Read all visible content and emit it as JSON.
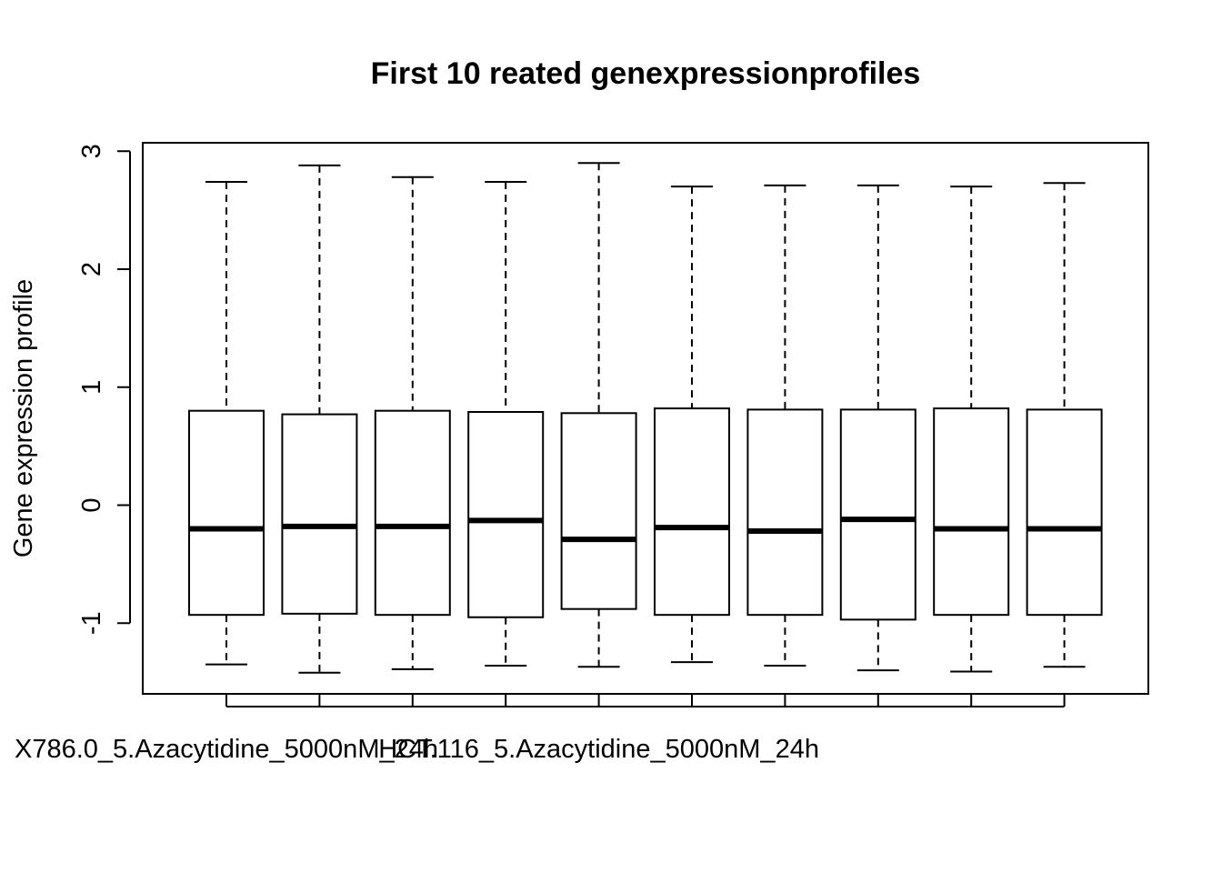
{
  "chart_data": {
    "type": "boxplot",
    "title": "First 10 reated genexpressionprofiles",
    "xlabel": "",
    "ylabel": "Gene expression profile",
    "ylim": [
      -1.6,
      3.05
    ],
    "yticks": [
      -1,
      0,
      1,
      2,
      3
    ],
    "ytick_labels": [
      "-1",
      "0",
      "1",
      "2",
      "3"
    ],
    "x_tick_count": 10,
    "x_tick_labels_shown": [
      {
        "position": 1,
        "label": "X786.0_5.Azacytidine_5000nM_24h"
      },
      {
        "position": 5,
        "label": "HCT.116_5.Azacytidine_5000nM_24h"
      }
    ],
    "boxes": [
      {
        "whisker_low": -1.35,
        "q1": -0.93,
        "median": -0.2,
        "q3": 0.8,
        "whisker_high": 2.74
      },
      {
        "whisker_low": -1.42,
        "q1": -0.92,
        "median": -0.18,
        "q3": 0.77,
        "whisker_high": 2.88
      },
      {
        "whisker_low": -1.39,
        "q1": -0.93,
        "median": -0.18,
        "q3": 0.8,
        "whisker_high": 2.78
      },
      {
        "whisker_low": -1.36,
        "q1": -0.95,
        "median": -0.13,
        "q3": 0.79,
        "whisker_high": 2.74
      },
      {
        "whisker_low": -1.37,
        "q1": -0.88,
        "median": -0.29,
        "q3": 0.78,
        "whisker_high": 2.9
      },
      {
        "whisker_low": -1.33,
        "q1": -0.93,
        "median": -0.19,
        "q3": 0.82,
        "whisker_high": 2.7
      },
      {
        "whisker_low": -1.36,
        "q1": -0.93,
        "median": -0.22,
        "q3": 0.81,
        "whisker_high": 2.71
      },
      {
        "whisker_low": -1.4,
        "q1": -0.97,
        "median": -0.12,
        "q3": 0.81,
        "whisker_high": 2.71
      },
      {
        "whisker_low": -1.41,
        "q1": -0.93,
        "median": -0.2,
        "q3": 0.82,
        "whisker_high": 2.7
      },
      {
        "whisker_low": -1.37,
        "q1": -0.93,
        "median": -0.2,
        "q3": 0.81,
        "whisker_high": 2.73
      }
    ],
    "grid": false,
    "legend": "none"
  }
}
